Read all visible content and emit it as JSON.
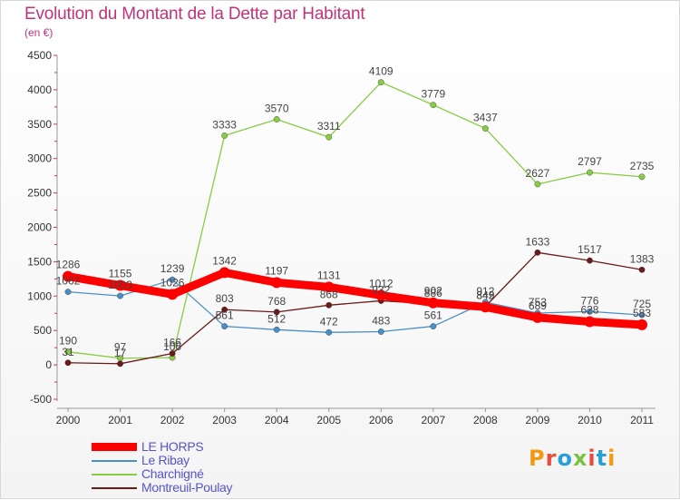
{
  "chart_title": "Evolution du Montant de la Dette par Habitant",
  "chart_subtitle": "(en €)",
  "logo": {
    "text": "Proxiti",
    "letters": [
      "P",
      "r",
      "o",
      "x",
      "i",
      "t",
      "i"
    ],
    "colors": [
      "#f29b12",
      "#e74c3c",
      "#2a9fd6",
      "#7cc242",
      "#e74c3c",
      "#2a9fd6",
      "#f29b12"
    ]
  },
  "chart_data": {
    "type": "line",
    "title": "Evolution du Montant de la Dette par Habitant",
    "subtitle": "(en €)",
    "xlabel": "",
    "ylabel": "",
    "categories": [
      "2000",
      "2001",
      "2002",
      "2003",
      "2004",
      "2005",
      "2006",
      "2007",
      "2008",
      "2009",
      "2010",
      "2011"
    ],
    "ylim": [
      -500,
      4500
    ],
    "yticks": [
      -500,
      0,
      500,
      1000,
      1500,
      2000,
      2500,
      3000,
      3500,
      4000,
      4500
    ],
    "grid": false,
    "legend_position": "bottom-left",
    "series": [
      {
        "name": "LE HORPS",
        "color": "#ff0000",
        "emphasis": true,
        "values": [
          1286,
          1155,
          1026,
          1342,
          1197,
          1131,
          1012,
          902,
          842,
          689,
          628,
          583
        ]
      },
      {
        "name": "Le Ribay",
        "color": "#4a90c8",
        "values": [
          1062,
          1003,
          1239,
          561,
          512,
          472,
          483,
          561,
          912,
          753,
          776,
          725
        ]
      },
      {
        "name": "Charchigné",
        "color": "#88cc44",
        "values": [
          190,
          97,
          106,
          3333,
          3570,
          3311,
          4109,
          3779,
          3437,
          2627,
          2797,
          2735
        ]
      },
      {
        "name": "Montreuil-Poulay",
        "color": "#6b1a1a",
        "values": [
          31,
          17,
          166,
          803,
          768,
          868,
          932,
          886,
          849,
          1633,
          1517,
          1383
        ]
      }
    ]
  }
}
